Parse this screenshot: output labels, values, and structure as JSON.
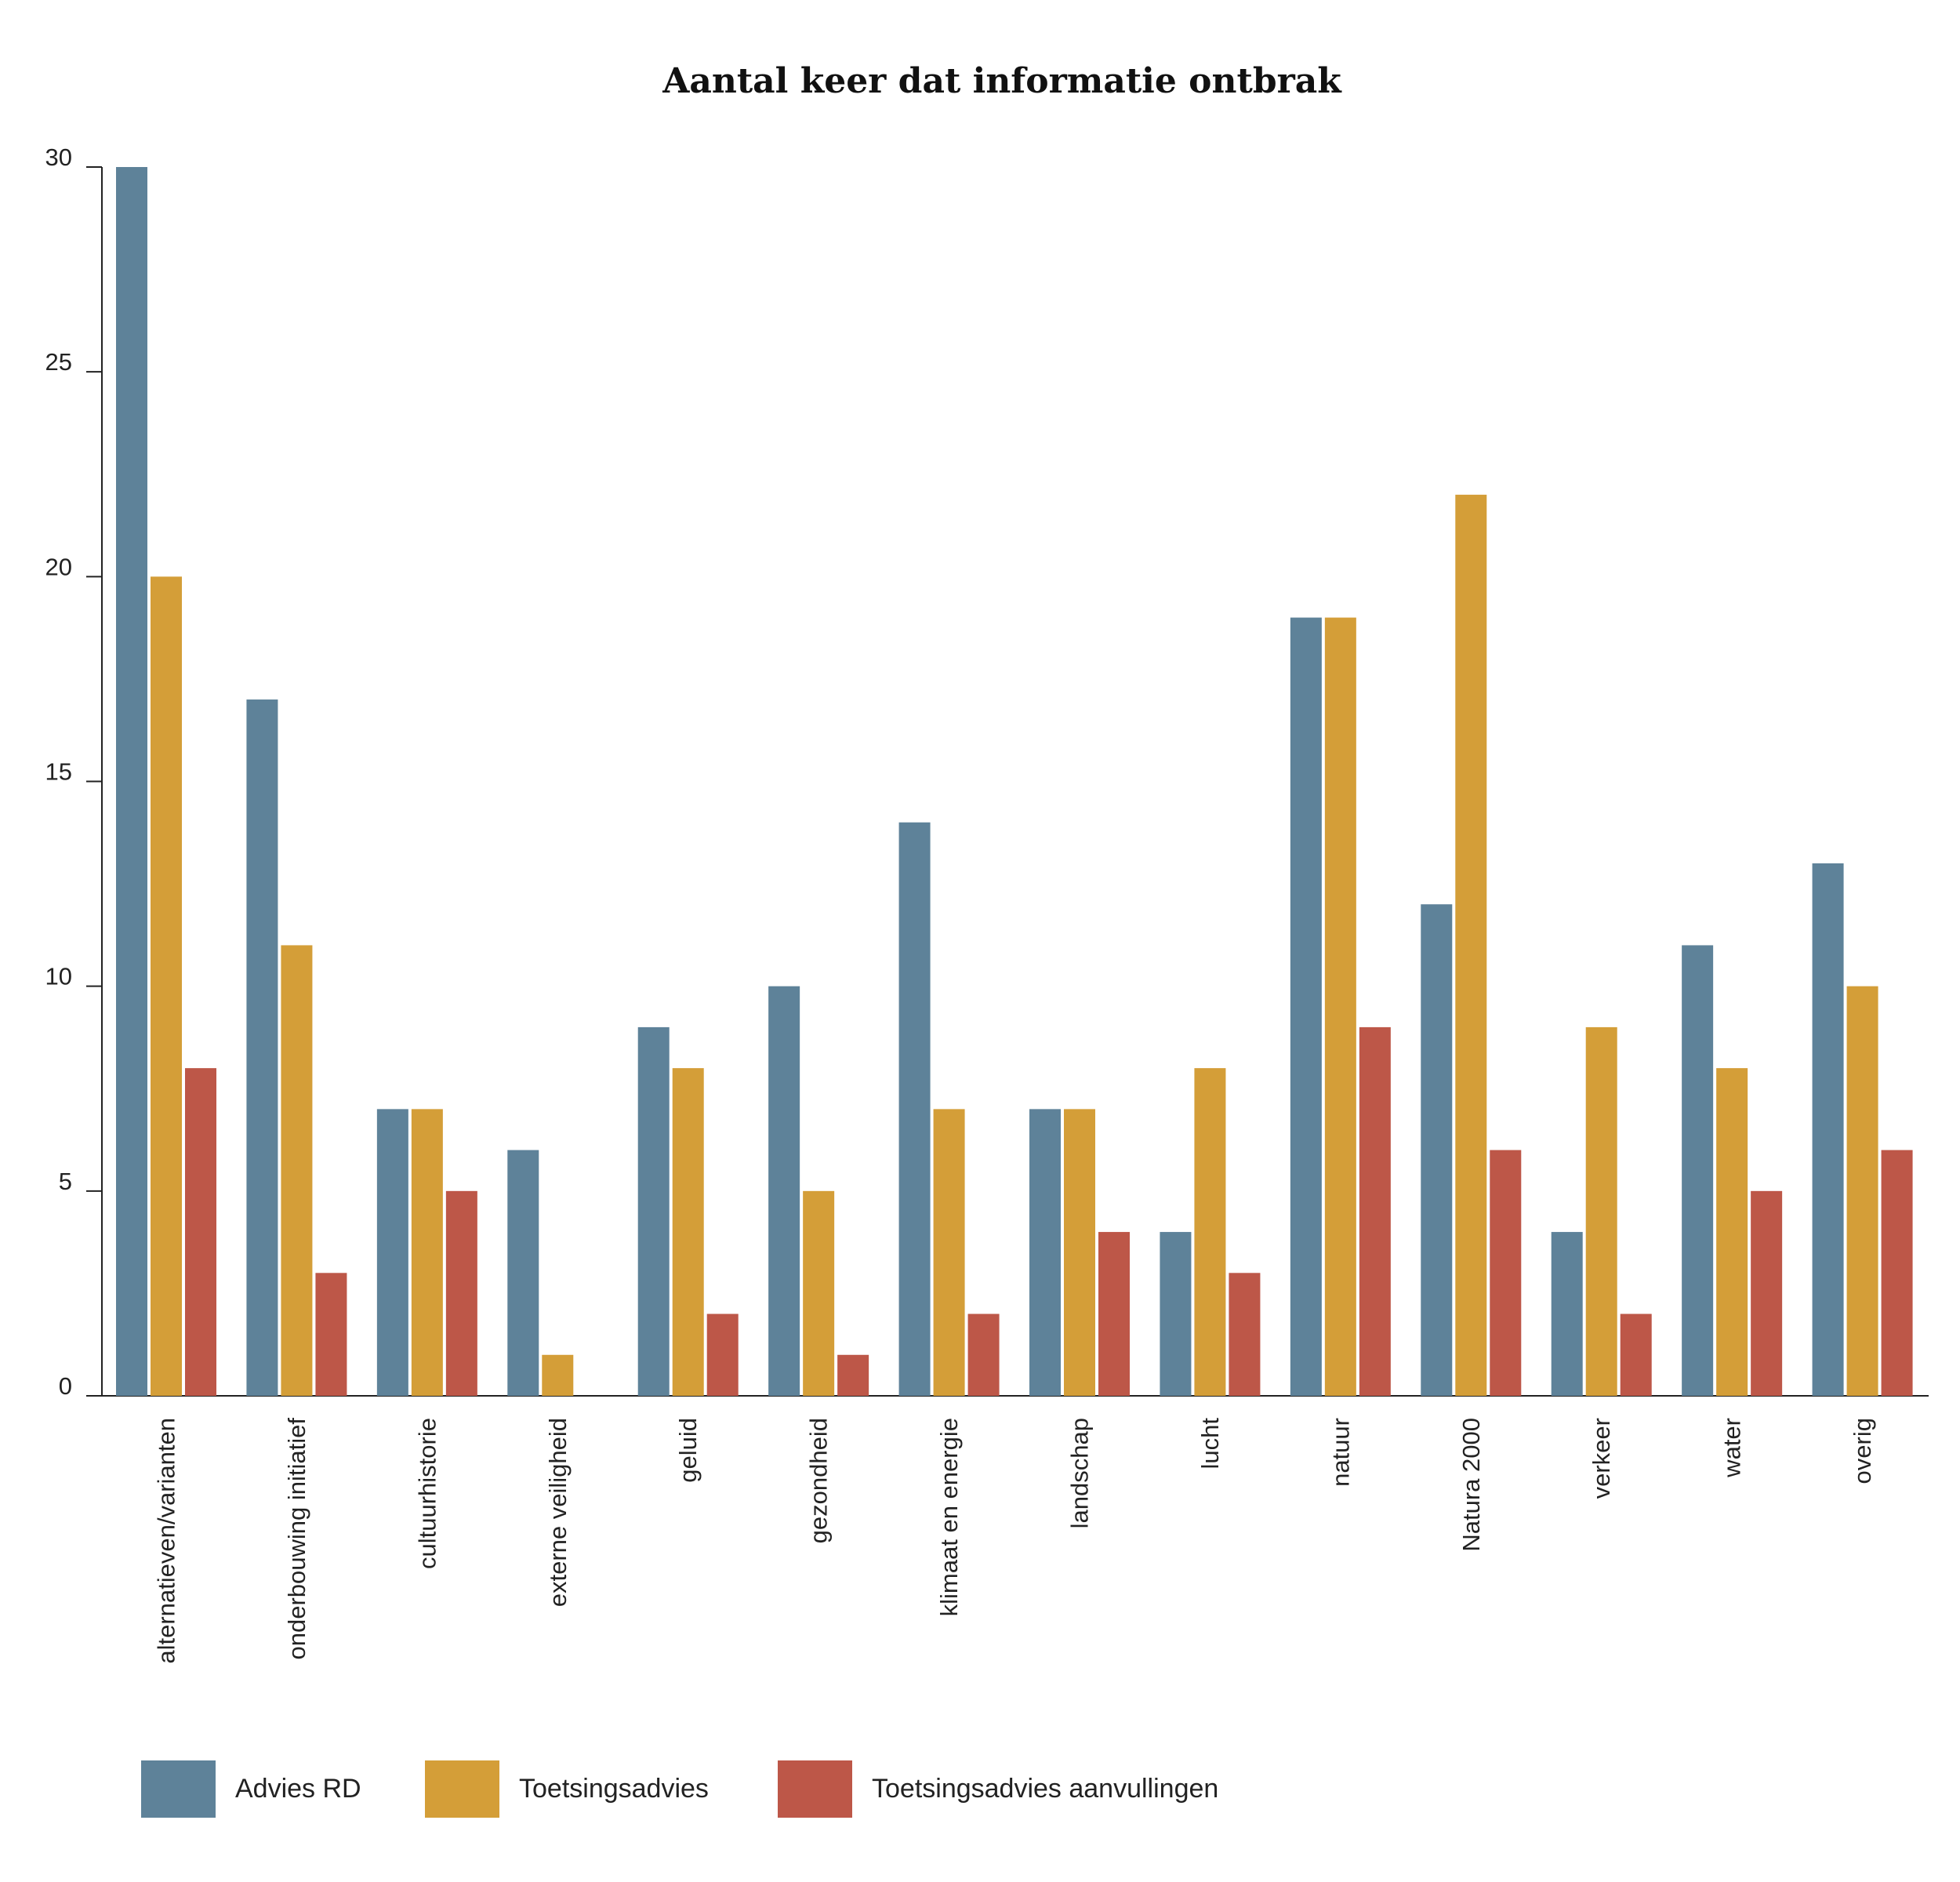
{
  "chart_data": {
    "type": "bar",
    "title": "Aantal keer dat informatie ontbrak",
    "xlabel": "",
    "ylabel": "",
    "ylim": [
      0,
      30
    ],
    "yticks": [
      0,
      5,
      10,
      15,
      20,
      25,
      30
    ],
    "grid": false,
    "legend_position": "bottom-left",
    "categories": [
      "alternatieven/varianten",
      "onderbouwing initiatief",
      "cultuurhistorie",
      "externe veiligheid",
      "geluid",
      "gezondheid",
      "klimaat en energie",
      "landschap",
      "lucht",
      "natuur",
      "Natura 2000",
      "verkeer",
      "water",
      "overig"
    ],
    "series": [
      {
        "name": "Advies RD",
        "color": "#5e8299",
        "values": [
          30,
          17,
          7,
          6,
          9,
          10,
          14,
          7,
          4,
          19,
          12,
          4,
          11,
          13
        ]
      },
      {
        "name": "Toetsingsadvies",
        "color": "#d49e38",
        "values": [
          20,
          11,
          7,
          1,
          8,
          5,
          7,
          7,
          8,
          19,
          22,
          9,
          8,
          10
        ]
      },
      {
        "name": "Toetsingsadvies aanvullingen",
        "color": "#bd5748",
        "values": [
          8,
          3,
          5,
          0,
          2,
          1,
          2,
          4,
          3,
          9,
          6,
          2,
          5,
          6
        ]
      }
    ]
  }
}
